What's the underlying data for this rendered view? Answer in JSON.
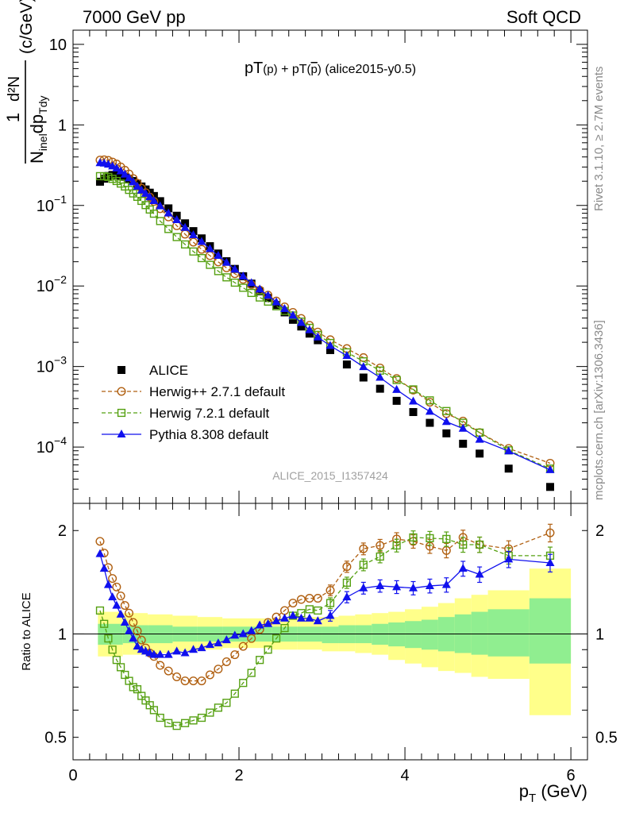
{
  "header": {
    "left": "7000 GeV pp",
    "right": "Soft QCD"
  },
  "side_labels": {
    "top": "Rivet 3.1.10, ≥ 2.7M events",
    "bottom": "mcplots.cern.ch [arXiv:1306.3436]"
  },
  "chart_data": [
    {
      "type": "scatter",
      "title": "pT(p) + pT(p̄) (alice2015-y0.5)",
      "title_parts": [
        "pT",
        "(p)",
        " + pT",
        "(",
        "p",
        ")",
        " (alice2015-y0.5)"
      ],
      "ylabel_parts": [
        "1",
        "d²N",
        "N",
        "inel",
        "dp",
        "Tdy",
        "(c/GeV)"
      ],
      "xlim": [
        0,
        6.2
      ],
      "ylim": [
        2e-05,
        15
      ],
      "yscale": "log",
      "y_ticks": [
        {
          "v": 10,
          "label": "10"
        },
        {
          "v": 1,
          "label": "1"
        },
        {
          "v": 0.1,
          "label": "10",
          "exp": "−1"
        },
        {
          "v": 0.01,
          "label": "10",
          "exp": "−2"
        },
        {
          "v": 0.001,
          "label": "10",
          "exp": "−3"
        },
        {
          "v": 0.0001,
          "label": "10",
          "exp": "−4"
        }
      ],
      "watermark": "ALICE_2015_I1357424",
      "legend_position": "lower-left",
      "x": [
        0.325,
        0.375,
        0.425,
        0.475,
        0.525,
        0.575,
        0.625,
        0.675,
        0.725,
        0.775,
        0.825,
        0.875,
        0.925,
        0.975,
        1.05,
        1.15,
        1.25,
        1.35,
        1.45,
        1.55,
        1.65,
        1.75,
        1.85,
        1.95,
        2.05,
        2.15,
        2.25,
        2.35,
        2.45,
        2.55,
        2.65,
        2.75,
        2.85,
        2.95,
        3.1,
        3.3,
        3.5,
        3.7,
        3.9,
        4.1,
        4.3,
        4.5,
        4.7,
        4.9,
        5.25,
        5.75
      ],
      "series": [
        {
          "name": "ALICE",
          "color": "#000000",
          "marker": "square-filled",
          "values": [
            0.197,
            0.215,
            0.232,
            0.239,
            0.239,
            0.234,
            0.226,
            0.214,
            0.201,
            0.186,
            0.172,
            0.158,
            0.144,
            0.131,
            0.113,
            0.092,
            0.0745,
            0.06,
            0.048,
            0.039,
            0.0312,
            0.0253,
            0.0203,
            0.0163,
            0.0132,
            0.0107,
            0.0086,
            0.0071,
            0.0058,
            0.0047,
            0.0038,
            0.00314,
            0.00256,
            0.00212,
            0.0016,
            0.00106,
            0.00073,
            0.00053,
            0.000375,
            0.000272,
            0.0002,
            0.000148,
            0.00011,
            8.3e-05,
            5.4e-05,
            3.2e-05
          ]
        },
        {
          "name": "Herwig++ 2.7.1 default",
          "color": "#b05f10",
          "marker": "circle-open",
          "line": "dashed",
          "values": [
            0.366,
            0.369,
            0.363,
            0.346,
            0.327,
            0.301,
            0.274,
            0.246,
            0.216,
            0.189,
            0.164,
            0.144,
            0.127,
            0.112,
            0.091,
            0.072,
            0.056,
            0.044,
            0.035,
            0.0285,
            0.0238,
            0.0199,
            0.0168,
            0.0142,
            0.0121,
            0.0104,
            0.0089,
            0.0077,
            0.0065,
            0.0055,
            0.0047,
            0.00395,
            0.00325,
            0.00268,
            0.00215,
            0.00167,
            0.00129,
            0.00096,
            0.00071,
            0.00051,
            0.00036,
            0.00026,
            0.00021,
            0.000151,
            9.6e-05,
            6.3e-05
          ]
        },
        {
          "name": "Herwig 7.2.1 default",
          "color": "#55a011",
          "marker": "square-open",
          "line": "dashed",
          "values": [
            0.231,
            0.23,
            0.226,
            0.214,
            0.201,
            0.187,
            0.172,
            0.156,
            0.141,
            0.128,
            0.114,
            0.101,
            0.089,
            0.079,
            0.064,
            0.051,
            0.0405,
            0.0328,
            0.0268,
            0.0222,
            0.0183,
            0.0153,
            0.0128,
            0.011,
            0.0095,
            0.0082,
            0.0072,
            0.0064,
            0.0056,
            0.0049,
            0.0043,
            0.00361,
            0.00302,
            0.00247,
            0.00196,
            0.0015,
            0.00116,
            0.00089,
            0.00068,
            0.00052,
            0.00038,
            0.00028,
            0.0002,
            0.000151,
            9.1e-05,
            5.4e-05
          ]
        },
        {
          "name": "Pythia 8.308 default",
          "color": "#1010ee",
          "marker": "triangle-filled",
          "line": "solid",
          "values": [
            0.337,
            0.333,
            0.323,
            0.307,
            0.289,
            0.266,
            0.243,
            0.219,
            0.195,
            0.172,
            0.154,
            0.14,
            0.127,
            0.114,
            0.098,
            0.08,
            0.066,
            0.053,
            0.043,
            0.0354,
            0.0289,
            0.0238,
            0.0195,
            0.0161,
            0.0132,
            0.0109,
            0.0091,
            0.0076,
            0.0063,
            0.0052,
            0.0043,
            0.0035,
            0.00284,
            0.00231,
            0.00181,
            0.00136,
            0.00099,
            0.00073,
            0.000515,
            0.00037,
            0.000276,
            0.000206,
            0.00017,
            0.000124,
            8.9e-05,
            5.2e-05
          ]
        }
      ]
    },
    {
      "type": "line",
      "ylabel": "Ratio to ALICE",
      "xlabel": "p",
      "xlabel_sub": "T",
      "xlabel_unit": "(GeV)",
      "xlim": [
        0,
        6.2
      ],
      "ylim": [
        0.43,
        2.4
      ],
      "yscale": "log",
      "x_ticks": [
        0,
        2,
        4,
        6
      ],
      "y_ticks": [
        {
          "v": 2,
          "label": "2"
        },
        {
          "v": 1,
          "label": "1"
        },
        {
          "v": 0.5,
          "label": "0.5"
        }
      ],
      "bands": [
        {
          "name": "outer",
          "color": "#ffff8a",
          "lo": [
            0.86,
            0.87,
            0.88,
            0.89,
            0.9,
            0.91,
            0.91,
            0.9,
            0.9,
            0.89,
            0.89,
            0.88,
            0.87,
            0.84,
            0.82,
            0.8,
            0.78,
            0.77,
            0.75,
            0.74,
            0.58
          ],
          "hi": [
            1.16,
            1.15,
            1.14,
            1.13,
            1.12,
            1.11,
            1.11,
            1.11,
            1.12,
            1.12,
            1.13,
            1.14,
            1.15,
            1.16,
            1.18,
            1.2,
            1.23,
            1.27,
            1.3,
            1.34,
            1.55
          ]
        },
        {
          "name": "inner",
          "color": "#90ee90",
          "lo": [
            0.93,
            0.94,
            0.94,
            0.95,
            0.95,
            0.95,
            0.95,
            0.95,
            0.95,
            0.94,
            0.94,
            0.94,
            0.93,
            0.92,
            0.91,
            0.9,
            0.89,
            0.88,
            0.87,
            0.86,
            0.82
          ],
          "hi": [
            1.07,
            1.06,
            1.06,
            1.05,
            1.05,
            1.05,
            1.05,
            1.05,
            1.05,
            1.05,
            1.06,
            1.06,
            1.07,
            1.08,
            1.09,
            1.1,
            1.12,
            1.14,
            1.16,
            1.18,
            1.27
          ]
        }
      ],
      "band_edges": [
        0.3,
        0.6,
        0.9,
        1.2,
        1.5,
        1.8,
        2.1,
        2.4,
        2.7,
        3.0,
        3.2,
        3.4,
        3.6,
        3.8,
        4.0,
        4.2,
        4.4,
        4.6,
        4.8,
        5.0,
        5.5,
        6.0
      ],
      "x": [
        0.325,
        0.375,
        0.425,
        0.475,
        0.525,
        0.575,
        0.625,
        0.675,
        0.725,
        0.775,
        0.825,
        0.875,
        0.925,
        0.975,
        1.05,
        1.15,
        1.25,
        1.35,
        1.45,
        1.55,
        1.65,
        1.75,
        1.85,
        1.95,
        2.05,
        2.15,
        2.25,
        2.35,
        2.45,
        2.55,
        2.65,
        2.75,
        2.85,
        2.95,
        3.1,
        3.3,
        3.5,
        3.7,
        3.9,
        4.1,
        4.3,
        4.5,
        4.7,
        4.9,
        5.25,
        5.75
      ],
      "series": [
        {
          "name": "Herwig++ 2.7.1 default",
          "color": "#b05f10",
          "marker": "circle-open",
          "line": "dashed",
          "values": [
            1.86,
            1.72,
            1.56,
            1.45,
            1.37,
            1.29,
            1.21,
            1.15,
            1.08,
            1.02,
            0.96,
            0.91,
            0.88,
            0.86,
            0.81,
            0.78,
            0.75,
            0.73,
            0.73,
            0.73,
            0.76,
            0.79,
            0.83,
            0.87,
            0.92,
            0.97,
            1.03,
            1.08,
            1.12,
            1.17,
            1.23,
            1.26,
            1.27,
            1.27,
            1.34,
            1.57,
            1.77,
            1.81,
            1.89,
            1.86,
            1.8,
            1.75,
            1.91,
            1.82,
            1.77,
            1.97
          ]
        },
        {
          "name": "Herwig 7.2.1 default",
          "color": "#55a011",
          "marker": "square-open",
          "line": "dashed",
          "values": [
            1.17,
            1.07,
            0.97,
            0.9,
            0.84,
            0.8,
            0.76,
            0.73,
            0.7,
            0.69,
            0.66,
            0.64,
            0.62,
            0.6,
            0.57,
            0.55,
            0.54,
            0.55,
            0.56,
            0.57,
            0.59,
            0.61,
            0.63,
            0.67,
            0.72,
            0.77,
            0.84,
            0.9,
            0.97,
            1.04,
            1.13,
            1.15,
            1.18,
            1.17,
            1.23,
            1.41,
            1.59,
            1.68,
            1.81,
            1.91,
            1.9,
            1.89,
            1.82,
            1.82,
            1.69,
            1.69
          ]
        },
        {
          "name": "Pythia 8.308 default",
          "color": "#1010ee",
          "marker": "triangle-filled",
          "line": "solid",
          "values": [
            1.71,
            1.55,
            1.39,
            1.28,
            1.21,
            1.14,
            1.08,
            1.02,
            0.97,
            0.92,
            0.9,
            0.89,
            0.88,
            0.87,
            0.87,
            0.87,
            0.89,
            0.88,
            0.9,
            0.91,
            0.93,
            0.94,
            0.96,
            0.99,
            1.0,
            1.02,
            1.06,
            1.07,
            1.09,
            1.11,
            1.13,
            1.11,
            1.11,
            1.09,
            1.13,
            1.28,
            1.36,
            1.38,
            1.37,
            1.36,
            1.38,
            1.39,
            1.55,
            1.49,
            1.65,
            1.61
          ]
        }
      ],
      "error_x_min": 3.0
    }
  ]
}
